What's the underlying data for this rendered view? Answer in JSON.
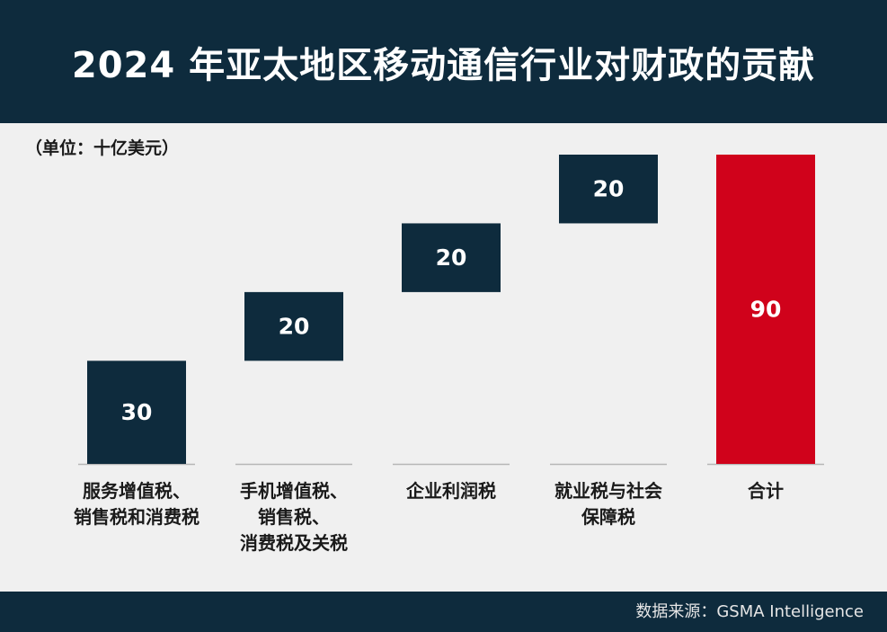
{
  "header": {
    "title": "2024 年亚太地区移动通信行业对财政的贡献"
  },
  "unit_label": "（单位：十亿美元）",
  "footer": {
    "source": "数据来源：GSMA Intelligence"
  },
  "colors": {
    "header_bg": "#0e2b3d",
    "bar": "#0e2b3d",
    "total_bar": "#d0021b",
    "background": "#f0f0f0"
  },
  "chart_data": {
    "type": "bar",
    "subtype": "waterfall",
    "title": "2024 年亚太地区移动通信行业对财政的贡献",
    "unit": "（单位：十亿美元）",
    "categories": [
      "服务增值税、\n销售税和消费税",
      "手机增值税、\n销售税、\n消费税及关税",
      "企业利润税",
      "就业税与社会\n保障税",
      "合计"
    ],
    "values": [
      30,
      20,
      20,
      20,
      90
    ],
    "data_labels": [
      "30",
      "20",
      "20",
      "20",
      "90"
    ],
    "is_total": [
      false,
      false,
      false,
      false,
      true
    ],
    "ylim": [
      0,
      90
    ],
    "grid": false,
    "legend": "none"
  }
}
